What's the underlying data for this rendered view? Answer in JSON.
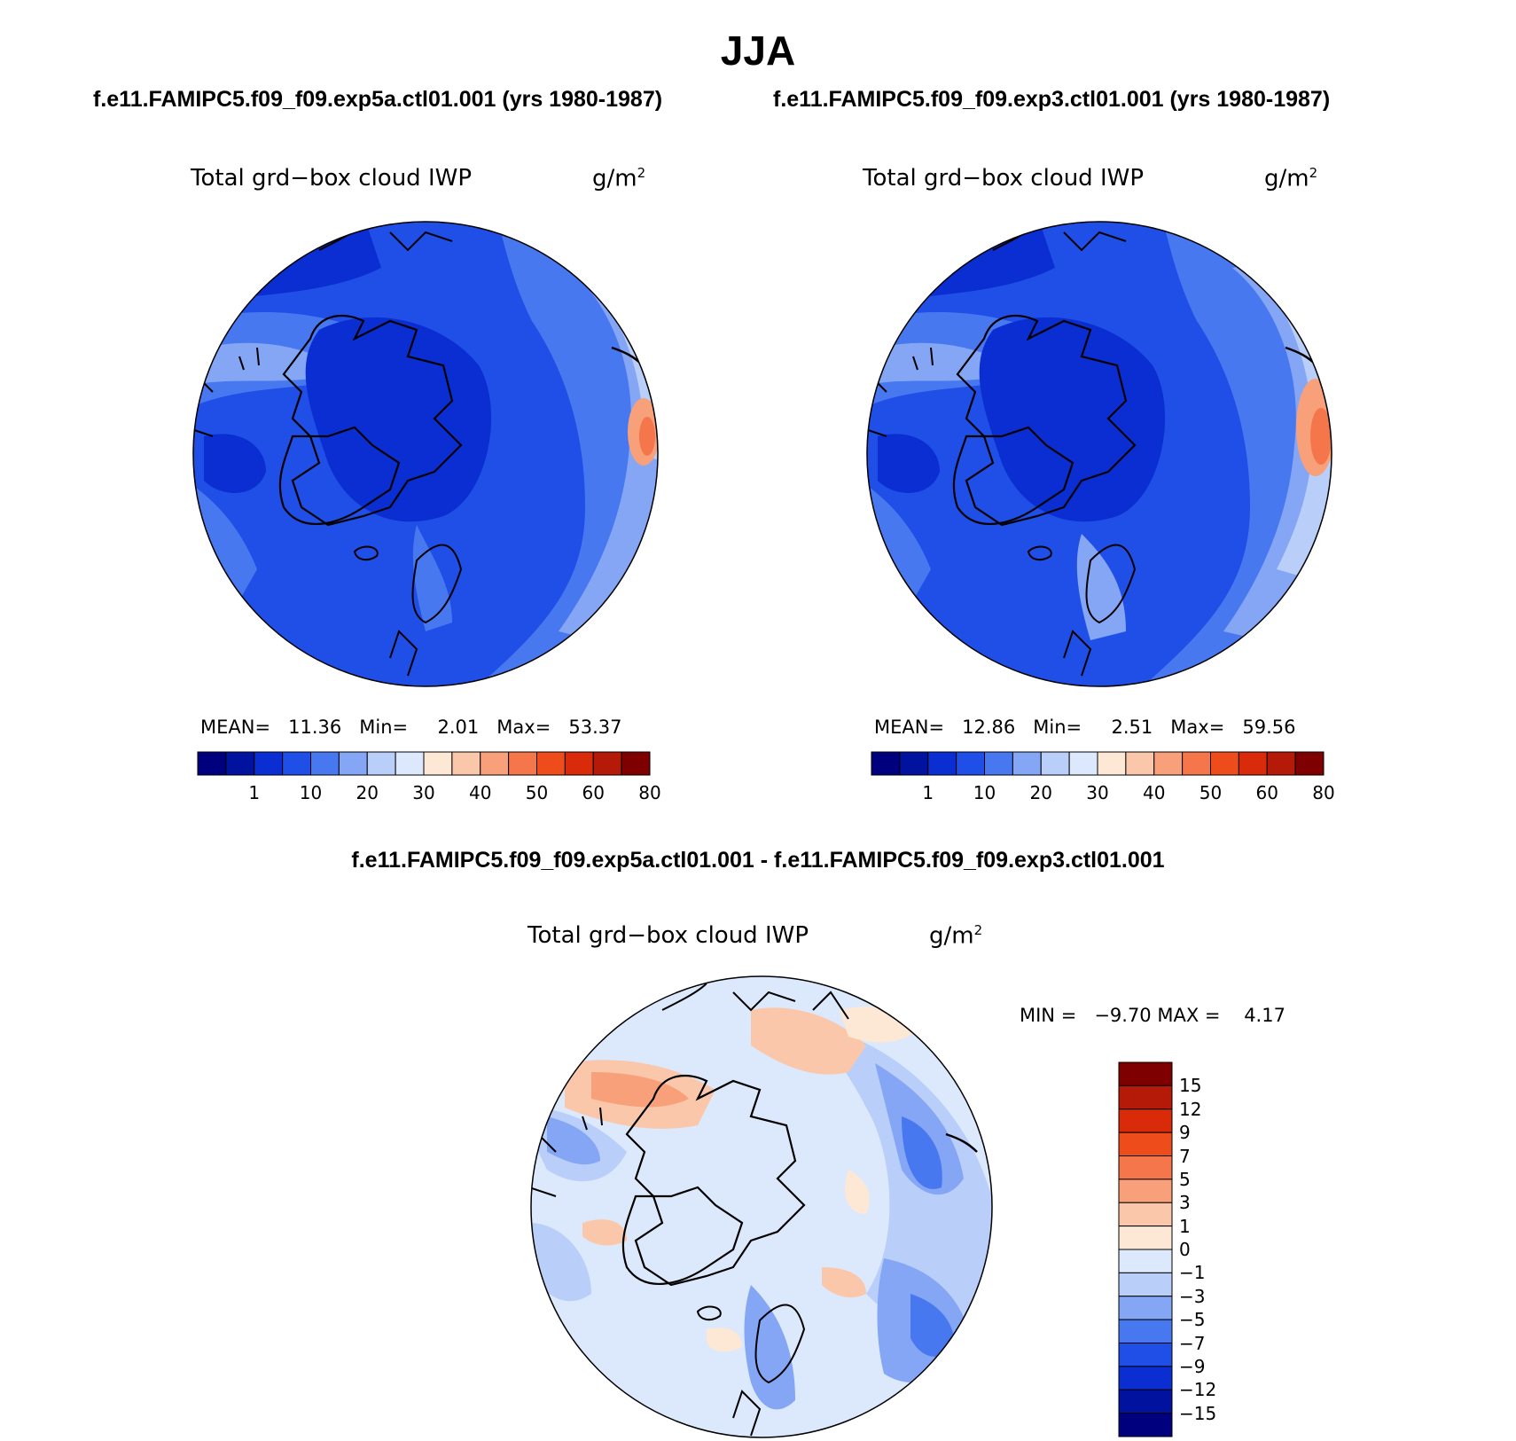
{
  "title": "JJA",
  "panels": [
    {
      "case_label": "f.e11.FAMIPC5.f09_f09.exp5a.ctl01.001 (yrs 1980-1987)",
      "variable": "Total grd−box cloud IWP",
      "units": "g/m",
      "units_sup": "2",
      "stats": {
        "mean_label": "MEAN=",
        "mean": "11.36",
        "min_label": "Min=",
        "min": "2.01",
        "max_label": "Max=",
        "max": "53.37"
      }
    },
    {
      "case_label": "f.e11.FAMIPC5.f09_f09.exp3.ctl01.001 (yrs 1980-1987)",
      "variable": "Total grd−box cloud IWP",
      "units": "g/m",
      "units_sup": "2",
      "stats": {
        "mean_label": "MEAN=",
        "mean": "12.86",
        "min_label": "Min=",
        "min": "2.51",
        "max_label": "Max=",
        "max": "59.56"
      }
    }
  ],
  "difference": {
    "title": "f.e11.FAMIPC5.f09_f09.exp5a.ctl01.001 - f.e11.FAMIPC5.f09_f09.exp3.ctl01.001",
    "variable": "Total grd−box cloud IWP",
    "units": "g/m",
    "units_sup": "2",
    "minmax_text": "MIN =   −9.70 MAX =    4.17"
  },
  "abs_colorbar": {
    "colors": [
      "#00007f",
      "#00129e",
      "#0a2ed1",
      "#1f4fe6",
      "#4878f0",
      "#84a6f5",
      "#b9cef9",
      "#dce9fc",
      "#fde8d6",
      "#fbc7ab",
      "#f8a07a",
      "#f5764a",
      "#ef4c1c",
      "#d92a0a",
      "#b41a07",
      "#7f0000"
    ],
    "labels": [
      "1",
      "10",
      "20",
      "30",
      "40",
      "50",
      "60",
      "80"
    ]
  },
  "diff_colorbar": {
    "colors": [
      "#7f0000",
      "#b41a07",
      "#d92a0a",
      "#ef4c1c",
      "#f5764a",
      "#f8a07a",
      "#fbc7ab",
      "#fde8d6",
      "#dce9fc",
      "#b9cef9",
      "#84a6f5",
      "#4878f0",
      "#1f4fe6",
      "#0a2ed1",
      "#00129e",
      "#00007f"
    ],
    "labels": [
      "15",
      "12",
      "9",
      "7",
      "5",
      "3",
      "1",
      "0",
      "−1",
      "−3",
      "−5",
      "−7",
      "−9",
      "−12",
      "−15"
    ]
  }
}
